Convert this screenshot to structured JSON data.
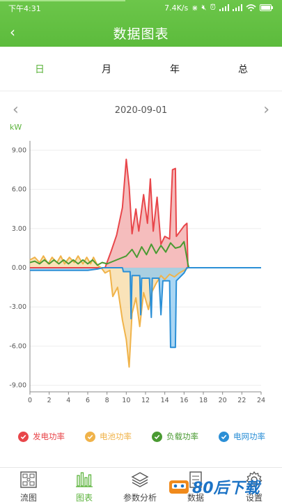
{
  "status_bar": {
    "time": "下午4:31",
    "speed": "7.4K/s"
  },
  "header": {
    "title": "数据图表"
  },
  "tabs": [
    {
      "label": "日",
      "active": true
    },
    {
      "label": "月",
      "active": false
    },
    {
      "label": "年",
      "active": false
    },
    {
      "label": "总",
      "active": false
    }
  ],
  "date_nav": {
    "date": "2020-09-01"
  },
  "unit_label": "kW",
  "chart_data": {
    "type": "area",
    "x_ticks": [
      "0",
      "2",
      "4",
      "6",
      "8",
      "10",
      "12",
      "14",
      "16",
      "18",
      "20",
      "22",
      "24"
    ],
    "y_ticks": [
      "9.00",
      "6.00",
      "3.00",
      "0.00",
      "-3.00",
      "-6.00",
      "-9.00"
    ],
    "xlim": [
      0,
      24
    ],
    "ylim": [
      -9.5,
      9.5
    ],
    "series": [
      {
        "name": "发电功率",
        "color": "#e8464a",
        "fill": "#f2a7a7",
        "points": [
          [
            0,
            0
          ],
          [
            7.8,
            0
          ],
          [
            8.4,
            1.2
          ],
          [
            9.0,
            2.5
          ],
          [
            9.6,
            4.6
          ],
          [
            10.0,
            8.3
          ],
          [
            10.3,
            6.2
          ],
          [
            10.6,
            2.6
          ],
          [
            11.0,
            4.5
          ],
          [
            11.3,
            2.8
          ],
          [
            11.8,
            5.6
          ],
          [
            12.2,
            3.4
          ],
          [
            12.5,
            6.8
          ],
          [
            12.8,
            2.8
          ],
          [
            13.2,
            5.4
          ],
          [
            13.6,
            1.8
          ],
          [
            14.0,
            2.4
          ],
          [
            14.5,
            2.2
          ],
          [
            14.8,
            7.5
          ],
          [
            15.1,
            7.6
          ],
          [
            15.2,
            2.4
          ],
          [
            15.6,
            2.8
          ],
          [
            16.0,
            3.2
          ],
          [
            16.3,
            3.4
          ],
          [
            16.4,
            0
          ]
        ]
      },
      {
        "name": "电池功率",
        "color": "#f0b34a",
        "fill": "#f7d9a2",
        "points": [
          [
            0,
            0.6
          ],
          [
            0.5,
            0.8
          ],
          [
            1.0,
            0.4
          ],
          [
            1.4,
            0.9
          ],
          [
            1.9,
            0.3
          ],
          [
            2.3,
            0.8
          ],
          [
            2.8,
            0.4
          ],
          [
            3.2,
            0.9
          ],
          [
            3.6,
            0.3
          ],
          [
            4.1,
            0.8
          ],
          [
            4.6,
            0.4
          ],
          [
            5.0,
            0.9
          ],
          [
            5.5,
            0.3
          ],
          [
            5.9,
            0.8
          ],
          [
            6.3,
            0.3
          ],
          [
            6.6,
            0.8
          ],
          [
            7.0,
            0.2
          ],
          [
            7.4,
            0
          ],
          [
            7.8,
            -0.4
          ],
          [
            8.3,
            -0.2
          ],
          [
            8.6,
            -2.2
          ],
          [
            9.1,
            -1.5
          ],
          [
            9.6,
            -4.0
          ],
          [
            10.0,
            -5.5
          ],
          [
            10.3,
            -7.6
          ],
          [
            10.6,
            -3.5
          ],
          [
            11.0,
            -2.3
          ],
          [
            11.4,
            -4.5
          ],
          [
            11.8,
            -1.9
          ],
          [
            12.3,
            -3.2
          ],
          [
            12.7,
            -1.8
          ],
          [
            13.1,
            -1.2
          ],
          [
            13.6,
            -0.6
          ],
          [
            14.0,
            -0.9
          ],
          [
            14.5,
            -0.5
          ],
          [
            15.0,
            -0.7
          ],
          [
            15.5,
            -0.4
          ],
          [
            16.0,
            -0.2
          ],
          [
            16.4,
            0
          ],
          [
            24,
            0
          ]
        ]
      },
      {
        "name": "负载功率",
        "color": "#4a9a32",
        "fill": "none",
        "points": [
          [
            0,
            0.4
          ],
          [
            0.5,
            0.5
          ],
          [
            1.0,
            0.3
          ],
          [
            1.5,
            0.6
          ],
          [
            2.0,
            0.3
          ],
          [
            2.5,
            0.6
          ],
          [
            3.0,
            0.3
          ],
          [
            3.5,
            0.6
          ],
          [
            4.0,
            0.3
          ],
          [
            4.5,
            0.6
          ],
          [
            5.0,
            0.3
          ],
          [
            5.5,
            0.6
          ],
          [
            6.0,
            0.3
          ],
          [
            6.5,
            0.6
          ],
          [
            7.0,
            0.2
          ],
          [
            7.5,
            0.4
          ],
          [
            8.0,
            0.3
          ],
          [
            9.0,
            0.6
          ],
          [
            10.0,
            0.9
          ],
          [
            10.6,
            1.4
          ],
          [
            11.1,
            0.8
          ],
          [
            11.6,
            1.6
          ],
          [
            12.1,
            1.0
          ],
          [
            12.6,
            1.8
          ],
          [
            13.1,
            1.1
          ],
          [
            13.6,
            1.7
          ],
          [
            14.1,
            1.2
          ],
          [
            14.6,
            1.9
          ],
          [
            15.1,
            1.5
          ],
          [
            15.6,
            1.6
          ],
          [
            16.0,
            2.0
          ],
          [
            16.4,
            0.3
          ],
          [
            16.5,
            0
          ]
        ]
      },
      {
        "name": "电网功率",
        "color": "#2b8fd6",
        "fill": "#8ec8ef",
        "points": [
          [
            0,
            -0.2
          ],
          [
            6.0,
            -0.2
          ],
          [
            7.0,
            -0.1
          ],
          [
            7.6,
            0
          ],
          [
            9.6,
            0
          ],
          [
            9.7,
            -0.3
          ],
          [
            10.4,
            -0.3
          ],
          [
            10.5,
            -3.9
          ],
          [
            10.6,
            -0.6
          ],
          [
            11.4,
            -0.6
          ],
          [
            11.5,
            -3.6
          ],
          [
            11.6,
            -0.8
          ],
          [
            12.4,
            -0.8
          ],
          [
            12.6,
            -3.8
          ],
          [
            12.7,
            -0.8
          ],
          [
            13.4,
            -0.8
          ],
          [
            13.6,
            -3.6
          ],
          [
            13.8,
            -1.0
          ],
          [
            14.5,
            -1.0
          ],
          [
            14.6,
            -6.1
          ],
          [
            15.1,
            -6.1
          ],
          [
            15.2,
            -1.0
          ],
          [
            16.0,
            -0.4
          ],
          [
            16.3,
            0
          ],
          [
            24,
            0
          ]
        ]
      }
    ]
  },
  "legend": [
    {
      "label": "发电功率",
      "color": "#e8464a"
    },
    {
      "label": "电池功率",
      "color": "#f0b34a"
    },
    {
      "label": "负载功率",
      "color": "#4a9a32"
    },
    {
      "label": "电网功率",
      "color": "#2b8fd6"
    }
  ],
  "bottom_nav": [
    {
      "label": "流图",
      "icon": "flow-diagram-icon",
      "active": false
    },
    {
      "label": "图表",
      "icon": "bar-chart-icon",
      "active": true
    },
    {
      "label": "参数分析",
      "icon": "layers-icon",
      "active": false
    },
    {
      "label": "数据",
      "icon": "document-icon",
      "active": false
    },
    {
      "label": "设置",
      "icon": "gear-icon",
      "active": false
    }
  ],
  "watermark": {
    "text": "80后下载"
  }
}
